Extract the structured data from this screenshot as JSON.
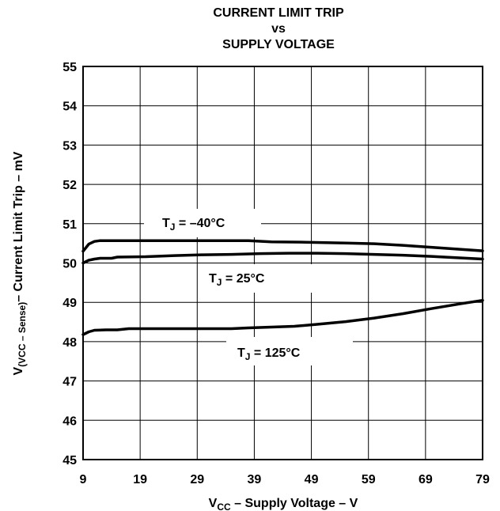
{
  "chart_data": {
    "type": "line",
    "title": [
      "CURRENT LIMIT TRIP",
      "vs",
      "SUPPLY VOLTAGE"
    ],
    "xlabel": {
      "main": "V",
      "sub": "CC",
      "rest": " – Supply Voltage – V"
    },
    "ylabel": {
      "main": "V",
      "sub": "(VCC – Sense)",
      "rest": "– Current Limit Trip – mV"
    },
    "xlim": [
      9,
      79
    ],
    "ylim": [
      45,
      55
    ],
    "x_ticks": [
      "9",
      "19",
      "29",
      "39",
      "49",
      "59",
      "69",
      "79"
    ],
    "y_ticks": [
      "45",
      "46",
      "47",
      "48",
      "49",
      "50",
      "51",
      "52",
      "53",
      "54",
      "55"
    ],
    "grid": true,
    "series": [
      {
        "name": {
          "main": "T",
          "sub": "J",
          "rest": " = –40°C"
        },
        "points": [
          [
            9,
            50.3
          ],
          [
            10,
            50.48
          ],
          [
            11,
            50.55
          ],
          [
            12,
            50.57
          ],
          [
            15,
            50.57
          ],
          [
            20,
            50.57
          ],
          [
            30,
            50.57
          ],
          [
            38,
            50.57
          ],
          [
            42,
            50.54
          ],
          [
            48,
            50.53
          ],
          [
            55,
            50.51
          ],
          [
            60,
            50.49
          ],
          [
            65,
            50.45
          ],
          [
            70,
            50.4
          ],
          [
            75,
            50.35
          ],
          [
            79,
            50.31
          ]
        ]
      },
      {
        "name": {
          "main": "T",
          "sub": "J",
          "rest": " = 25°C"
        },
        "points": [
          [
            9,
            50.0
          ],
          [
            10,
            50.07
          ],
          [
            11,
            50.1
          ],
          [
            12,
            50.12
          ],
          [
            14,
            50.12
          ],
          [
            15,
            50.15
          ],
          [
            20,
            50.16
          ],
          [
            25,
            50.19
          ],
          [
            30,
            50.21
          ],
          [
            35,
            50.22
          ],
          [
            40,
            50.24
          ],
          [
            45,
            50.25
          ],
          [
            50,
            50.25
          ],
          [
            55,
            50.24
          ],
          [
            60,
            50.22
          ],
          [
            65,
            50.2
          ],
          [
            70,
            50.17
          ],
          [
            75,
            50.13
          ],
          [
            79,
            50.1
          ]
        ]
      },
      {
        "name": {
          "main": "T",
          "sub": "J",
          "rest": " = 125°C"
        },
        "points": [
          [
            9,
            48.18
          ],
          [
            10,
            48.25
          ],
          [
            11,
            48.29
          ],
          [
            13,
            48.3
          ],
          [
            15,
            48.3
          ],
          [
            17,
            48.33
          ],
          [
            20,
            48.33
          ],
          [
            25,
            48.33
          ],
          [
            30,
            48.33
          ],
          [
            35,
            48.33
          ],
          [
            38,
            48.35
          ],
          [
            42,
            48.37
          ],
          [
            46,
            48.39
          ],
          [
            50,
            48.44
          ],
          [
            55,
            48.51
          ],
          [
            60,
            48.6
          ],
          [
            65,
            48.71
          ],
          [
            70,
            48.84
          ],
          [
            75,
            48.96
          ],
          [
            79,
            49.05
          ]
        ]
      }
    ]
  }
}
